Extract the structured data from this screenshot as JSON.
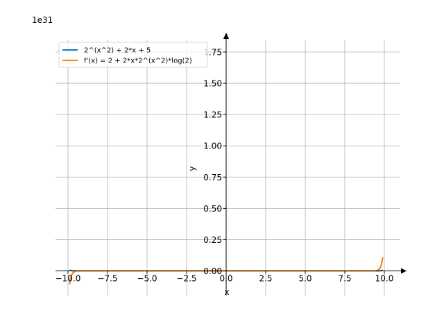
{
  "chart_data": {
    "type": "line",
    "title": "",
    "xlabel": "x",
    "ylabel": "y",
    "y_offset_text": "1e31",
    "xlim": [
      -10.5,
      10.5
    ],
    "ylim": [
      -0.09,
      1.87
    ],
    "x_ticks": [
      -10,
      -7.5,
      -5,
      -2.5,
      0,
      2.5,
      5,
      7.5,
      10
    ],
    "x_tick_labels": [
      "−10.0",
      "−7.5",
      "−5.0",
      "−2.5",
      "0.0",
      "2.5",
      "5.0",
      "7.5",
      "10.0"
    ],
    "y_ticks": [
      0,
      0.25,
      0.5,
      0.75,
      1.0,
      1.25,
      1.5,
      1.75
    ],
    "y_tick_labels": [
      "0.00",
      "0.25",
      "0.50",
      "0.75",
      "1.00",
      "1.25",
      "1.50",
      "1.75"
    ],
    "grid": true,
    "legend_position": "top-left",
    "series": [
      {
        "name": "2^(x^2) + 2*x + 5",
        "color": "#1f77b4",
        "x": [
          -9.9,
          -9.85,
          -9.8,
          -9.7,
          -9.5,
          -9.0,
          0,
          9.0,
          9.5,
          9.7,
          9.8,
          9.85,
          9.9
        ],
        "y": [
          0.0063,
          0.004,
          0.0025,
          0.0009,
          6e-05,
          0.0,
          0.0,
          0.0,
          6e-05,
          0.0009,
          0.0025,
          0.004,
          0.0063
        ]
      },
      {
        "name": "f'(x) = 2 + 2*x*2^(x^2)*log(2)",
        "color": "#ff7f0e",
        "x": [
          -9.9,
          -9.85,
          -9.8,
          -9.7,
          -9.5,
          -9.0,
          0,
          9.0,
          9.5,
          9.7,
          9.8,
          9.85,
          9.9
        ],
        "y": [
          -0.109,
          -0.07,
          -0.044,
          -0.016,
          -0.001,
          0.0,
          0.0,
          0.0,
          0.001,
          0.016,
          0.044,
          0.07,
          0.109
        ]
      }
    ]
  }
}
